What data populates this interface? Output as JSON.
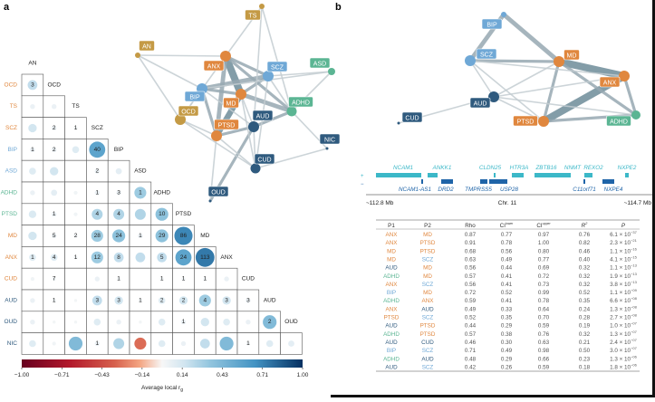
{
  "panels": {
    "a": "a",
    "b": "b"
  },
  "colors": {
    "orange": "#e0873e",
    "gold": "#c49a45",
    "blue": "#6fa8d6",
    "green": "#5bb593",
    "navy": "#2f5a7e",
    "edge": "#8fa0aa"
  },
  "network_a": {
    "nodes": [
      {
        "id": "TS",
        "color": "gold"
      },
      {
        "id": "AN",
        "color": "gold"
      },
      {
        "id": "ANX",
        "color": "orange"
      },
      {
        "id": "SCZ",
        "color": "blue"
      },
      {
        "id": "ASD",
        "color": "green"
      },
      {
        "id": "BIP",
        "color": "blue"
      },
      {
        "id": "MD",
        "color": "orange"
      },
      {
        "id": "ADHD",
        "color": "green"
      },
      {
        "id": "OCD",
        "color": "gold"
      },
      {
        "id": "AUD",
        "color": "navy"
      },
      {
        "id": "PTSD",
        "color": "orange"
      },
      {
        "id": "NIC",
        "color": "navy"
      },
      {
        "id": "CUD",
        "color": "navy"
      },
      {
        "id": "OUD",
        "color": "navy"
      }
    ],
    "edges": [
      [
        "ANX",
        "MD",
        5
      ],
      [
        "MD",
        "PTSD",
        4
      ],
      [
        "ANX",
        "PTSD",
        3
      ],
      [
        "BIP",
        "SCZ",
        3
      ],
      [
        "MD",
        "ADHD",
        3
      ],
      [
        "SCZ",
        "MD",
        2
      ],
      [
        "BIP",
        "MD",
        2
      ],
      [
        "PTSD",
        "AUD",
        2
      ],
      [
        "AUD",
        "ADHD",
        2
      ],
      [
        "ANX",
        "SCZ",
        2
      ],
      [
        "ANX",
        "ADHD",
        2
      ],
      [
        "BIP",
        "PTSD",
        2
      ],
      [
        "OUD",
        "AUD",
        2
      ],
      [
        "SCZ",
        "ADHD",
        1
      ],
      [
        "OCD",
        "BIP",
        1
      ],
      [
        "OCD",
        "ANX",
        1
      ],
      [
        "AN",
        "ANX",
        1
      ],
      [
        "AN",
        "OCD",
        1
      ],
      [
        "AN",
        "BIP",
        1
      ],
      [
        "TS",
        "ANX",
        1
      ],
      [
        "TS",
        "ADHD",
        1
      ],
      [
        "TS",
        "AUD",
        1
      ],
      [
        "ASD",
        "SCZ",
        1
      ],
      [
        "ASD",
        "BIP",
        1
      ],
      [
        "ASD",
        "ADHD",
        1
      ],
      [
        "NIC",
        "ADHD",
        1
      ],
      [
        "NIC",
        "CUD",
        1
      ],
      [
        "CUD",
        "AUD",
        1
      ],
      [
        "CUD",
        "PTSD",
        1
      ],
      [
        "CUD",
        "MD",
        1
      ],
      [
        "CUD",
        "SCZ",
        1
      ],
      [
        "OUD",
        "PTSD",
        1
      ],
      [
        "OCD",
        "PTSD",
        1
      ],
      [
        "OCD",
        "CUD",
        1
      ],
      [
        "BIP",
        "AUD",
        1
      ],
      [
        "MD",
        "AUD",
        1
      ]
    ]
  },
  "network_b": {
    "nodes": [
      {
        "id": "BIP",
        "color": "blue"
      },
      {
        "id": "SCZ",
        "color": "blue"
      },
      {
        "id": "MD",
        "color": "orange"
      },
      {
        "id": "ANX",
        "color": "orange"
      },
      {
        "id": "AUD",
        "color": "navy"
      },
      {
        "id": "CUD",
        "color": "navy"
      },
      {
        "id": "PTSD",
        "color": "orange"
      },
      {
        "id": "ADHD",
        "color": "green"
      }
    ],
    "edges": [
      [
        "MD",
        "ANX",
        5
      ],
      [
        "PTSD",
        "ANX",
        5
      ],
      [
        "BIP",
        "SCZ",
        3
      ],
      [
        "BIP",
        "MD",
        3
      ],
      [
        "SCZ",
        "MD",
        2
      ],
      [
        "MD",
        "PTSD",
        2
      ],
      [
        "ANX",
        "ADHD",
        2
      ],
      [
        "PTSD",
        "ADHD",
        2
      ],
      [
        "MD",
        "ADHD",
        2
      ],
      [
        "SCZ",
        "PTSD",
        1
      ],
      [
        "SCZ",
        "AUD",
        1
      ],
      [
        "AUD",
        "MD",
        1
      ],
      [
        "AUD",
        "ANX",
        1
      ],
      [
        "AUD",
        "ADHD",
        1
      ],
      [
        "AUD",
        "PTSD",
        1
      ],
      [
        "AUD",
        "CUD",
        1
      ],
      [
        "SCZ",
        "ANX",
        1
      ]
    ]
  },
  "chart_data": {
    "type": "heatmap",
    "columns": [
      "AN",
      "OCD",
      "TS",
      "SCZ",
      "BIP",
      "ASD",
      "ADHD",
      "PTSD",
      "MD",
      "ANX",
      "CUD",
      "AUD",
      "OUD"
    ],
    "rows": [
      "OCD",
      "TS",
      "SCZ",
      "BIP",
      "ASD",
      "ADHD",
      "PTSD",
      "MD",
      "ANX",
      "CUD",
      "AUD",
      "OUD",
      "NIC"
    ],
    "row_label_colors": [
      "orange",
      "orange",
      "orange",
      "blue",
      "blue",
      "green",
      "green",
      "orange",
      "orange",
      "orange",
      "navy",
      "navy",
      "navy"
    ],
    "diag_label_colors": [
      "orange",
      "orange",
      "blue",
      "blue",
      "green",
      "green",
      "orange",
      "orange",
      "orange",
      "navy",
      "navy",
      "navy"
    ],
    "values": [
      [
        0.2
      ],
      [
        0.05,
        0.05
      ],
      [
        0.15,
        0.05,
        0.03
      ],
      [
        0.05,
        0.05,
        0.1,
        0.55
      ],
      [
        0.1,
        0.15,
        null,
        0.05,
        0.08
      ],
      [
        0.05,
        0.08,
        0.03,
        0.05,
        0.05,
        0.3
      ],
      [
        0.12,
        0.05,
        0.03,
        0.25,
        0.25,
        0.25,
        0.35
      ],
      [
        0.15,
        0.05,
        0.03,
        0.3,
        0.35,
        0.05,
        0.35,
        0.7
      ],
      [
        0.1,
        0.1,
        0.03,
        0.3,
        0.2,
        0.2,
        0.2,
        0.55,
        0.75
      ],
      [
        0.03,
        0.03,
        null,
        0.05,
        0.03,
        null,
        0.03,
        0.03,
        0.03,
        0.05
      ],
      [
        0.05,
        0.03,
        0.02,
        0.2,
        0.15,
        0.03,
        0.1,
        0.15,
        0.3,
        0.15,
        0.05
      ],
      [
        0.05,
        0.02,
        0.02,
        0.1,
        0.05,
        0.02,
        0.1,
        0.05,
        0.15,
        0.1,
        0.05,
        0.4
      ],
      [
        0.1,
        0.03,
        0.4,
        0.05,
        0.25,
        -0.3,
        0.1,
        0.05,
        0.2,
        0.4,
        0.03,
        0.1,
        0.08
      ]
    ],
    "labels": [
      [
        "3"
      ],
      [
        "",
        ""
      ],
      [
        "",
        "2",
        "1"
      ],
      [
        "1",
        "2",
        "",
        "40"
      ],
      [
        "",
        "",
        "",
        "2",
        ""
      ],
      [
        "",
        "",
        "",
        "1",
        "3",
        "1"
      ],
      [
        "",
        "1",
        "",
        "4",
        "4",
        "",
        "10"
      ],
      [
        "",
        "5",
        "2",
        "28",
        "24",
        "1",
        "29",
        "86"
      ],
      [
        "1",
        "4",
        "1",
        "12",
        "8",
        "",
        "5",
        "24",
        "113"
      ],
      [
        "",
        "7",
        "",
        "",
        "1",
        "",
        "1",
        "1",
        "1",
        ""
      ],
      [
        "",
        "1",
        "",
        "3",
        "3",
        "1",
        "2",
        "2",
        "4",
        "3",
        "3"
      ],
      [
        "",
        "",
        "",
        "",
        "",
        "",
        "",
        "1",
        "",
        "",
        "",
        "2"
      ],
      [
        "",
        "",
        "",
        "1",
        "",
        "",
        "",
        "",
        "",
        "",
        "1",
        "",
        ""
      ]
    ],
    "colorbar": {
      "ticks": [
        "−1.00",
        "−0.71",
        "−0.43",
        "−0.14",
        "0.14",
        "0.43",
        "0.71",
        "1.00"
      ],
      "range": [
        -1,
        1
      ],
      "label": "Average local r",
      "label_sub": "g"
    }
  },
  "gene_track": {
    "strand_plus": "+",
    "strand_minus": "−",
    "plus_genes": [
      "NCAM1",
      "ANKK1",
      "CLDN25",
      "HTR3A",
      "ZBTB16",
      "NNMT",
      "REXO2",
      "NXPE2"
    ],
    "minus_genes": [
      "NCAM1-AS1",
      "DRD2",
      "TMPRSS5",
      "USP28",
      "C11orf71",
      "NXPE4"
    ],
    "left": "~112.8 Mb",
    "center": "Chr. 11",
    "right": "~114.7 Mb"
  },
  "table": {
    "headers": {
      "p1": "P1",
      "p2": "P2",
      "rho": "Rho",
      "ci": "CI",
      "lower": "lower",
      "upper": "upper",
      "r": "R",
      "r_sup": "2",
      "p": "P"
    },
    "rows": [
      {
        "p1": "ANX",
        "c1": "orange",
        "p2": "MD",
        "c2": "orange",
        "rho": "0.87",
        "lo": "0.77",
        "up": "0.97",
        "r2": "0.76",
        "pm": "6.1 × 10",
        "pe": "−37"
      },
      {
        "p1": "ANX",
        "c1": "orange",
        "p2": "PTSD",
        "c2": "orange",
        "rho": "0.91",
        "lo": "0.78",
        "up": "1.00",
        "r2": "0.82",
        "pm": "2.3 × 10",
        "pe": "−21"
      },
      {
        "p1": "MD",
        "c1": "orange",
        "p2": "PTSD",
        "c2": "orange",
        "rho": "0.68",
        "lo": "0.56",
        "up": "0.80",
        "r2": "0.46",
        "pm": "1.1 × 10",
        "pe": "−16"
      },
      {
        "p1": "MD",
        "c1": "orange",
        "p2": "SCZ",
        "c2": "blue",
        "rho": "0.63",
        "lo": "0.49",
        "up": "0.77",
        "r2": "0.40",
        "pm": "4.1 × 10",
        "pe": "−15"
      },
      {
        "p1": "AUD",
        "c1": "navy",
        "p2": "MD",
        "c2": "orange",
        "rho": "0.56",
        "lo": "0.44",
        "up": "0.69",
        "r2": "0.32",
        "pm": "1.1 × 10",
        "pe": "−13"
      },
      {
        "p1": "ADHD",
        "c1": "green",
        "p2": "MD",
        "c2": "orange",
        "rho": "0.57",
        "lo": "0.41",
        "up": "0.72",
        "r2": "0.32",
        "pm": "1.9 × 10",
        "pe": "−13"
      },
      {
        "p1": "ANX",
        "c1": "orange",
        "p2": "SCZ",
        "c2": "blue",
        "rho": "0.56",
        "lo": "0.41",
        "up": "0.73",
        "r2": "0.32",
        "pm": "3.8 × 10",
        "pe": "−13"
      },
      {
        "p1": "BIP",
        "c1": "blue",
        "p2": "MD",
        "c2": "orange",
        "rho": "0.72",
        "lo": "0.52",
        "up": "0.99",
        "r2": "0.52",
        "pm": "1.1 × 10",
        "pe": "−09"
      },
      {
        "p1": "ADHD",
        "c1": "green",
        "p2": "ANX",
        "c2": "orange",
        "rho": "0.59",
        "lo": "0.41",
        "up": "0.78",
        "r2": "0.35",
        "pm": "6.6 × 10",
        "pe": "−08"
      },
      {
        "p1": "ANX",
        "c1": "orange",
        "p2": "AUD",
        "c2": "navy",
        "rho": "0.49",
        "lo": "0.33",
        "up": "0.64",
        "r2": "0.24",
        "pm": "1.3 × 10",
        "pe": "−08"
      },
      {
        "p1": "PTSD",
        "c1": "orange",
        "p2": "SCZ",
        "c2": "blue",
        "rho": "0.52",
        "lo": "0.35",
        "up": "0.70",
        "r2": "0.28",
        "pm": "2.7 × 10",
        "pe": "−08"
      },
      {
        "p1": "AUD",
        "c1": "navy",
        "p2": "PTSD",
        "c2": "orange",
        "rho": "0.44",
        "lo": "0.29",
        "up": "0.59",
        "r2": "0.19",
        "pm": "1.0 × 10",
        "pe": "−07"
      },
      {
        "p1": "ADHD",
        "c1": "green",
        "p2": "PTSD",
        "c2": "orange",
        "rho": "0.57",
        "lo": "0.38",
        "up": "0.76",
        "r2": "0.32",
        "pm": "1.3 × 10",
        "pe": "−07"
      },
      {
        "p1": "AUD",
        "c1": "navy",
        "p2": "CUD",
        "c2": "navy",
        "rho": "0.46",
        "lo": "0.30",
        "up": "0.63",
        "r2": "0.21",
        "pm": "2.4 × 10",
        "pe": "−07"
      },
      {
        "p1": "BIP",
        "c1": "blue",
        "p2": "SCZ",
        "c2": "blue",
        "rho": "0.71",
        "lo": "0.49",
        "up": "0.98",
        "r2": "0.50",
        "pm": "3.0 × 10",
        "pe": "−07"
      },
      {
        "p1": "ADHD",
        "c1": "green",
        "p2": "AUD",
        "c2": "navy",
        "rho": "0.48",
        "lo": "0.29",
        "up": "0.66",
        "r2": "0.23",
        "pm": "1.3 × 10",
        "pe": "−06"
      },
      {
        "p1": "AUD",
        "c1": "navy",
        "p2": "SCZ",
        "c2": "blue",
        "rho": "0.42",
        "lo": "0.26",
        "up": "0.59",
        "r2": "0.18",
        "pm": "1.8 × 10",
        "pe": "−06"
      }
    ]
  }
}
